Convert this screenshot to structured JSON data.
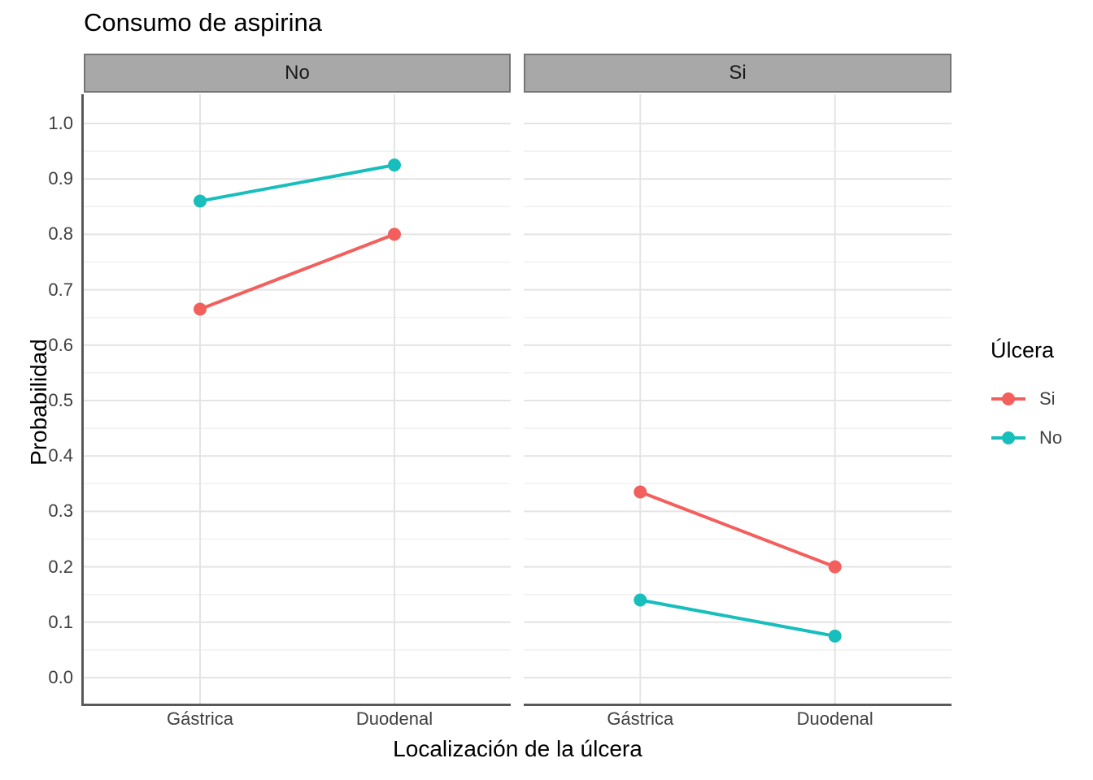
{
  "title": "Consumo de aspirina",
  "colors": {
    "ulcera_si": "#F25F5C",
    "ulcera_no": "#17BEBB",
    "strip_fill": "#A8A8A8",
    "strip_border": "#757575",
    "strip_text": "#1A1A1A",
    "axis_line": "#595959",
    "grid_major": "#E4E4E4",
    "grid_minor": "#F1F1F1",
    "tick_text": "#404040"
  },
  "axes": {
    "y_title": "Probabilidad",
    "x_title": "Localización de la úlcera",
    "y_tick_labels": [
      "1.0",
      "0.9",
      "0.8",
      "0.7",
      "0.6",
      "0.5",
      "0.4",
      "0.3",
      "0.2",
      "0.1",
      "0.0"
    ],
    "x_categories": [
      "Gástrica",
      "Duodenal"
    ]
  },
  "legend": {
    "title": "Úlcera",
    "entries": [
      {
        "label": "Si",
        "color": "#F25F5C"
      },
      {
        "label": "No",
        "color": "#17BEBB"
      }
    ]
  },
  "chart_data": {
    "type": "line",
    "title": "Consumo de aspirina",
    "facet_variable": "Consumo de aspirina",
    "categories": [
      "Gástrica",
      "Duodenal"
    ],
    "xlabel": "Localización de la úlcera",
    "ylabel": "Probabilidad",
    "ylim": [
      0.0,
      1.0
    ],
    "y_tick_step": 0.1,
    "grid": true,
    "legend_title": "Úlcera",
    "legend_position": "right",
    "point_marker": "circle",
    "facets": [
      {
        "label": "No",
        "series": [
          {
            "name": "Si",
            "color": "#F25F5C",
            "values": [
              0.665,
              0.8
            ]
          },
          {
            "name": "No",
            "color": "#17BEBB",
            "values": [
              0.86,
              0.925
            ]
          }
        ]
      },
      {
        "label": "Si",
        "series": [
          {
            "name": "Si",
            "color": "#F25F5C",
            "values": [
              0.335,
              0.2
            ]
          },
          {
            "name": "No",
            "color": "#17BEBB",
            "values": [
              0.14,
              0.075
            ]
          }
        ]
      }
    ]
  }
}
